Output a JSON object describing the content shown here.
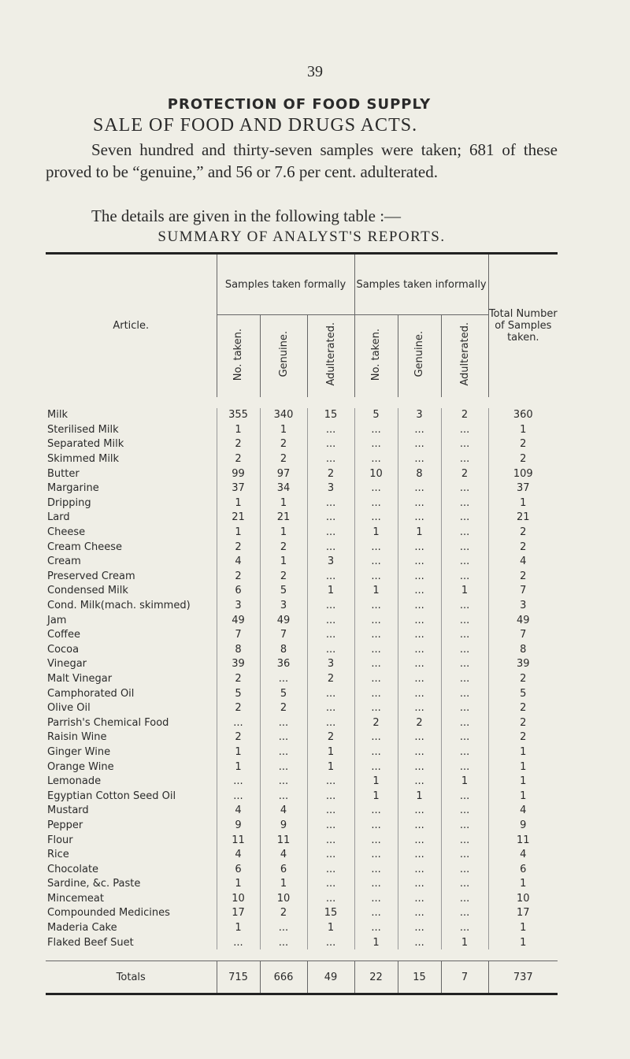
{
  "page_number": "39",
  "heading": "PROTECTION OF FOOD SUPPLY",
  "subheading": "SALE OF FOOD AND DRUGS ACTS.",
  "paragraphs": [
    "Seven hundred and thirty-seven samples were taken; 681 of these proved to be “genuine,” and 56 or 7.6 per cent. adulterated.",
    "The details are given in the following table :—"
  ],
  "table_title": "SUMMARY OF ANALYST'S REPORTS.",
  "table": {
    "header": {
      "article": "Article.",
      "formally": "Samples taken formally",
      "informally": "Samples taken informally",
      "sub": [
        "No. taken.",
        "Genuine.",
        "Adulterated.",
        "No. taken.",
        "Genuine.",
        "Adulterated."
      ],
      "total": "Total Number of Samples taken."
    },
    "rows": [
      [
        "Milk",
        "355",
        "340",
        "15",
        "5",
        "3",
        "2",
        "360"
      ],
      [
        "Sterilised Milk",
        "1",
        "1",
        "...",
        "...",
        "...",
        "...",
        "1"
      ],
      [
        "Separated Milk",
        "2",
        "2",
        "...",
        "...",
        "...",
        "...",
        "2"
      ],
      [
        "Skimmed Milk",
        "2",
        "2",
        "...",
        "...",
        "...",
        "...",
        "2"
      ],
      [
        "Butter",
        "99",
        "97",
        "2",
        "10",
        "8",
        "2",
        "109"
      ],
      [
        "Margarine",
        "37",
        "34",
        "3",
        "...",
        "...",
        "...",
        "37"
      ],
      [
        "Dripping",
        "1",
        "1",
        "...",
        "...",
        "...",
        "...",
        "1"
      ],
      [
        "Lard",
        "21",
        "21",
        "...",
        "...",
        "...",
        "...",
        "21"
      ],
      [
        "Cheese",
        "1",
        "1",
        "...",
        "1",
        "1",
        "...",
        "2"
      ],
      [
        "Cream Cheese",
        "2",
        "2",
        "...",
        "...",
        "...",
        "...",
        "2"
      ],
      [
        "Cream",
        "4",
        "1",
        "3",
        "...",
        "...",
        "...",
        "4"
      ],
      [
        "Preserved Cream",
        "2",
        "2",
        "...",
        "...",
        "...",
        "...",
        "2"
      ],
      [
        "Condensed Milk",
        "6",
        "5",
        "1",
        "1",
        "...",
        "1",
        "7"
      ],
      [
        "Cond. Milk(mach. skimmed)",
        "3",
        "3",
        "...",
        "...",
        "...",
        "...",
        "3"
      ],
      [
        "Jam",
        "49",
        "49",
        "...",
        "...",
        "...",
        "...",
        "49"
      ],
      [
        "Coffee",
        "7",
        "7",
        "...",
        "...",
        "...",
        "...",
        "7"
      ],
      [
        "Cocoa",
        "8",
        "8",
        "...",
        "...",
        "...",
        "...",
        "8"
      ],
      [
        "Vinegar",
        "39",
        "36",
        "3",
        "...",
        "...",
        "...",
        "39"
      ],
      [
        "Malt Vinegar",
        "2",
        "...",
        "2",
        "...",
        "...",
        "...",
        "2"
      ],
      [
        "Camphorated Oil",
        "5",
        "5",
        "...",
        "...",
        "...",
        "...",
        "5"
      ],
      [
        "Olive Oil",
        "2",
        "2",
        "...",
        "...",
        "...",
        "...",
        "2"
      ],
      [
        "Parrish's Chemical Food",
        "...",
        "...",
        "...",
        "2",
        "2",
        "...",
        "2"
      ],
      [
        "Raisin Wine",
        "2",
        "...",
        "2",
        "...",
        "...",
        "...",
        "2"
      ],
      [
        "Ginger Wine",
        "1",
        "...",
        "1",
        "...",
        "...",
        "...",
        "1"
      ],
      [
        "Orange Wine",
        "1",
        "...",
        "1",
        "...",
        "...",
        "...",
        "1"
      ],
      [
        "Lemonade",
        "...",
        "...",
        "...",
        "1",
        "...",
        "1",
        "1"
      ],
      [
        "Egyptian Cotton Seed Oil",
        "...",
        "...",
        "...",
        "1",
        "1",
        "...",
        "1"
      ],
      [
        "Mustard",
        "4",
        "4",
        "...",
        "...",
        "...",
        "...",
        "4"
      ],
      [
        "Pepper",
        "9",
        "9",
        "...",
        "...",
        "...",
        "...",
        "9"
      ],
      [
        "Flour",
        "11",
        "11",
        "...",
        "...",
        "...",
        "...",
        "11"
      ],
      [
        "Rice",
        "4",
        "4",
        "...",
        "...",
        "...",
        "...",
        "4"
      ],
      [
        "Chocolate",
        "6",
        "6",
        "...",
        "...",
        "...",
        "...",
        "6"
      ],
      [
        "Sardine, &c. Paste",
        "1",
        "1",
        "...",
        "...",
        "...",
        "...",
        "1"
      ],
      [
        "Mincemeat",
        "10",
        "10",
        "...",
        "...",
        "...",
        "...",
        "10"
      ],
      [
        "Compounded Medicines",
        "17",
        "2",
        "15",
        "...",
        "...",
        "...",
        "17"
      ],
      [
        "Maderia Cake",
        "1",
        "...",
        "1",
        "...",
        "...",
        "...",
        "1"
      ],
      [
        "Flaked Beef Suet",
        "...",
        "...",
        "...",
        "1",
        "...",
        "1",
        "1"
      ]
    ],
    "totals": [
      "Totals",
      "715",
      "666",
      "49",
      "22",
      "15",
      "7",
      "737"
    ]
  }
}
